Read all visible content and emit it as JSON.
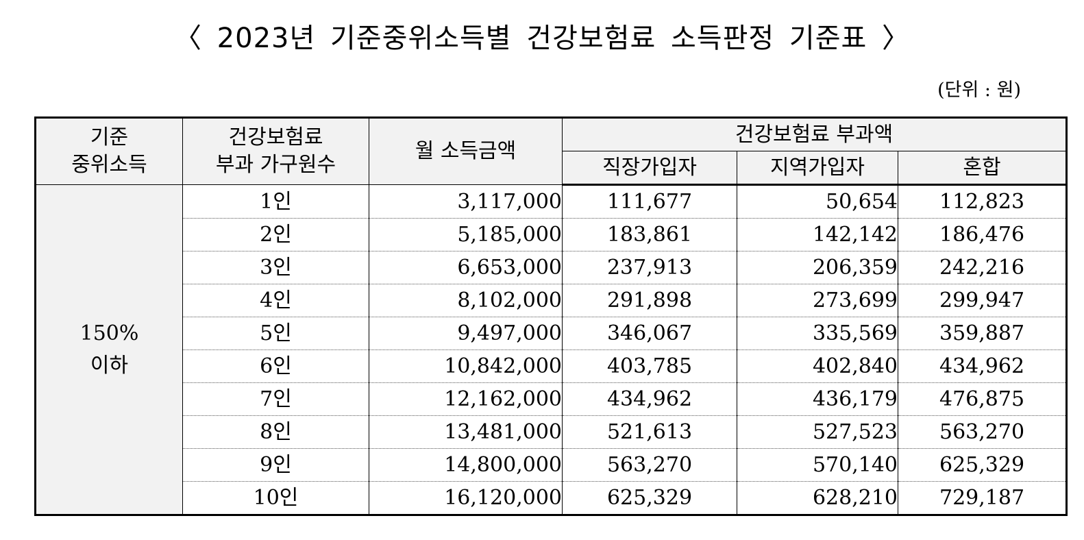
{
  "title": "〈 2023년 기준중위소득별 건강보험료 소득판정 기준표 〉",
  "unit": "(단위 : 원)",
  "headers": {
    "median_line1": "기준",
    "median_line2": "중위소득",
    "members_line1": "건강보험료",
    "members_line2": "부과 가구원수",
    "income": "월 소득금액",
    "premium": "건강보험료 부과액",
    "employee": "직장가입자",
    "regional": "지역가입자",
    "mixed": "혼합"
  },
  "row_group": {
    "percent": "150%",
    "below": "이하"
  },
  "rows": [
    {
      "members": "1인",
      "income": "3,117,000",
      "employee": "111,677",
      "regional": "50,654",
      "mixed": "112,823"
    },
    {
      "members": "2인",
      "income": "5,185,000",
      "employee": "183,861",
      "regional": "142,142",
      "mixed": "186,476"
    },
    {
      "members": "3인",
      "income": "6,653,000",
      "employee": "237,913",
      "regional": "206,359",
      "mixed": "242,216"
    },
    {
      "members": "4인",
      "income": "8,102,000",
      "employee": "291,898",
      "regional": "273,699",
      "mixed": "299,947"
    },
    {
      "members": "5인",
      "income": "9,497,000",
      "employee": "346,067",
      "regional": "335,569",
      "mixed": "359,887"
    },
    {
      "members": "6인",
      "income": "10,842,000",
      "employee": "403,785",
      "regional": "402,840",
      "mixed": "434,962"
    },
    {
      "members": "7인",
      "income": "12,162,000",
      "employee": "434,962",
      "regional": "436,179",
      "mixed": "476,875"
    },
    {
      "members": "8인",
      "income": "13,481,000",
      "employee": "521,613",
      "regional": "527,523",
      "mixed": "563,270"
    },
    {
      "members": "9인",
      "income": "14,800,000",
      "employee": "563,270",
      "regional": "570,140",
      "mixed": "625,329"
    },
    {
      "members": "10인",
      "income": "16,120,000",
      "employee": "625,329",
      "regional": "628,210",
      "mixed": "729,187"
    }
  ]
}
